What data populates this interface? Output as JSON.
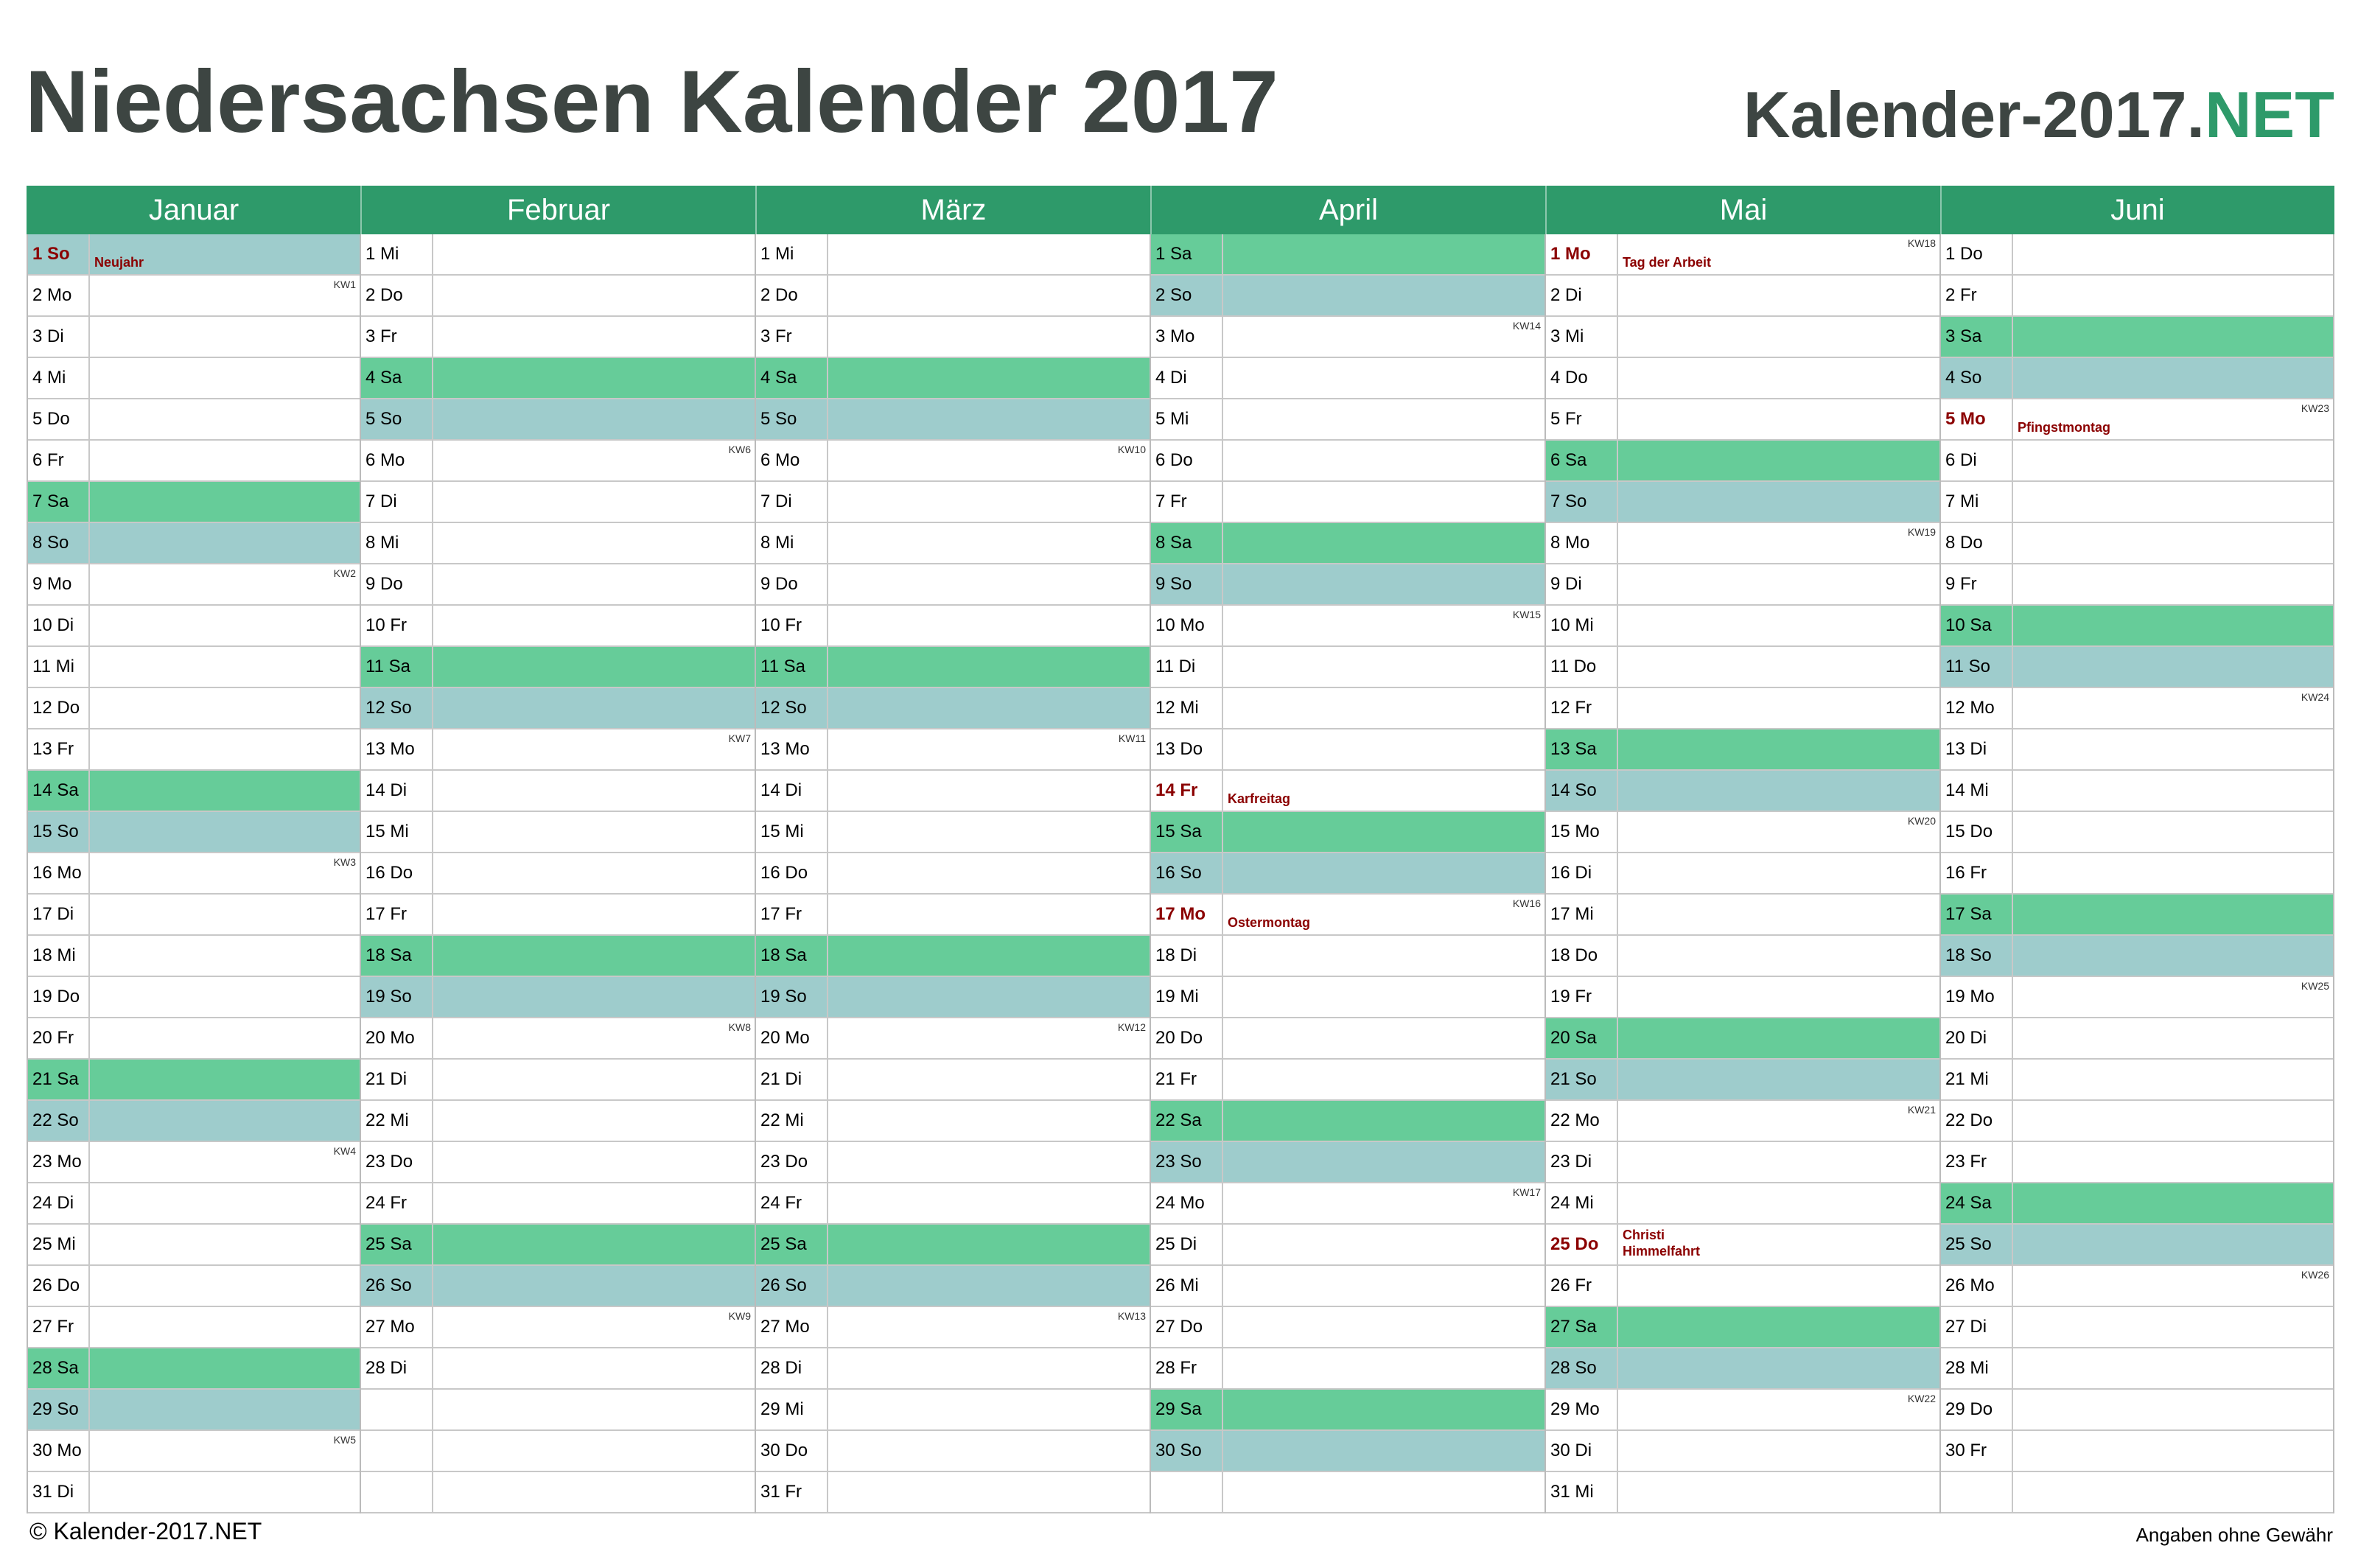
{
  "title": "Niedersachsen Kalender 2017",
  "brand": {
    "main": "Kalender-2017.",
    "tld": "NET"
  },
  "footer": {
    "copyright": "© Kalender-2017.NET",
    "disclaimer": "Angaben ohne Gewähr"
  },
  "colors": {
    "header": "#2e9a6a",
    "saturday": "#66cc99",
    "sunday": "#9ecccc",
    "holiday_text": "#8b0000"
  },
  "months": [
    {
      "name": "Januar",
      "days": [
        {
          "label": "1 So",
          "holiday": "Neujahr"
        },
        {
          "label": "2 Mo",
          "kw": "KW1"
        },
        {
          "label": "3 Di"
        },
        {
          "label": "4 Mi"
        },
        {
          "label": "5 Do"
        },
        {
          "label": "6 Fr"
        },
        {
          "label": "7 Sa"
        },
        {
          "label": "8 So"
        },
        {
          "label": "9 Mo",
          "kw": "KW2"
        },
        {
          "label": "10 Di"
        },
        {
          "label": "11 Mi"
        },
        {
          "label": "12 Do"
        },
        {
          "label": "13 Fr"
        },
        {
          "label": "14 Sa"
        },
        {
          "label": "15 So"
        },
        {
          "label": "16 Mo",
          "kw": "KW3"
        },
        {
          "label": "17 Di"
        },
        {
          "label": "18 Mi"
        },
        {
          "label": "19 Do"
        },
        {
          "label": "20 Fr"
        },
        {
          "label": "21 Sa"
        },
        {
          "label": "22 So"
        },
        {
          "label": "23 Mo",
          "kw": "KW4"
        },
        {
          "label": "24 Di"
        },
        {
          "label": "25 Mi"
        },
        {
          "label": "26 Do"
        },
        {
          "label": "27 Fr"
        },
        {
          "label": "28 Sa"
        },
        {
          "label": "29 So"
        },
        {
          "label": "30 Mo",
          "kw": "KW5"
        },
        {
          "label": "31 Di"
        }
      ]
    },
    {
      "name": "Februar",
      "days": [
        {
          "label": "1 Mi"
        },
        {
          "label": "2 Do"
        },
        {
          "label": "3 Fr"
        },
        {
          "label": "4 Sa"
        },
        {
          "label": "5 So"
        },
        {
          "label": "6 Mo",
          "kw": "KW6"
        },
        {
          "label": "7 Di"
        },
        {
          "label": "8 Mi"
        },
        {
          "label": "9 Do"
        },
        {
          "label": "10 Fr"
        },
        {
          "label": "11 Sa"
        },
        {
          "label": "12 So"
        },
        {
          "label": "13 Mo",
          "kw": "KW7"
        },
        {
          "label": "14 Di"
        },
        {
          "label": "15 Mi"
        },
        {
          "label": "16 Do"
        },
        {
          "label": "17 Fr"
        },
        {
          "label": "18 Sa"
        },
        {
          "label": "19 So"
        },
        {
          "label": "20 Mo",
          "kw": "KW8"
        },
        {
          "label": "21 Di"
        },
        {
          "label": "22 Mi"
        },
        {
          "label": "23 Do"
        },
        {
          "label": "24 Fr"
        },
        {
          "label": "25 Sa"
        },
        {
          "label": "26 So"
        },
        {
          "label": "27 Mo",
          "kw": "KW9"
        },
        {
          "label": "28 Di"
        }
      ]
    },
    {
      "name": "März",
      "days": [
        {
          "label": "1 Mi"
        },
        {
          "label": "2 Do"
        },
        {
          "label": "3 Fr"
        },
        {
          "label": "4 Sa"
        },
        {
          "label": "5 So"
        },
        {
          "label": "6 Mo",
          "kw": "KW10"
        },
        {
          "label": "7 Di"
        },
        {
          "label": "8 Mi"
        },
        {
          "label": "9 Do"
        },
        {
          "label": "10 Fr"
        },
        {
          "label": "11 Sa"
        },
        {
          "label": "12 So"
        },
        {
          "label": "13 Mo",
          "kw": "KW11"
        },
        {
          "label": "14 Di"
        },
        {
          "label": "15 Mi"
        },
        {
          "label": "16 Do"
        },
        {
          "label": "17 Fr"
        },
        {
          "label": "18 Sa"
        },
        {
          "label": "19 So"
        },
        {
          "label": "20 Mo",
          "kw": "KW12"
        },
        {
          "label": "21 Di"
        },
        {
          "label": "22 Mi"
        },
        {
          "label": "23 Do"
        },
        {
          "label": "24 Fr"
        },
        {
          "label": "25 Sa"
        },
        {
          "label": "26 So"
        },
        {
          "label": "27 Mo",
          "kw": "KW13"
        },
        {
          "label": "28 Di"
        },
        {
          "label": "29 Mi"
        },
        {
          "label": "30 Do"
        },
        {
          "label": "31 Fr"
        }
      ]
    },
    {
      "name": "April",
      "days": [
        {
          "label": "1 Sa"
        },
        {
          "label": "2 So"
        },
        {
          "label": "3 Mo",
          "kw": "KW14"
        },
        {
          "label": "4 Di"
        },
        {
          "label": "5 Mi"
        },
        {
          "label": "6 Do"
        },
        {
          "label": "7 Fr"
        },
        {
          "label": "8 Sa"
        },
        {
          "label": "9 So"
        },
        {
          "label": "10 Mo",
          "kw": "KW15"
        },
        {
          "label": "11 Di"
        },
        {
          "label": "12 Mi"
        },
        {
          "label": "13 Do"
        },
        {
          "label": "14 Fr",
          "holiday": "Karfreitag"
        },
        {
          "label": "15 Sa"
        },
        {
          "label": "16 So"
        },
        {
          "label": "17 Mo",
          "kw": "KW16",
          "holiday": "Ostermontag"
        },
        {
          "label": "18 Di"
        },
        {
          "label": "19 Mi"
        },
        {
          "label": "20 Do"
        },
        {
          "label": "21 Fr"
        },
        {
          "label": "22 Sa"
        },
        {
          "label": "23 So"
        },
        {
          "label": "24 Mo",
          "kw": "KW17"
        },
        {
          "label": "25 Di"
        },
        {
          "label": "26 Mi"
        },
        {
          "label": "27 Do"
        },
        {
          "label": "28 Fr"
        },
        {
          "label": "29 Sa"
        },
        {
          "label": "30 So"
        }
      ]
    },
    {
      "name": "Mai",
      "days": [
        {
          "label": "1 Mo",
          "kw": "KW18",
          "holiday": "Tag der Arbeit"
        },
        {
          "label": "2 Di"
        },
        {
          "label": "3 Mi"
        },
        {
          "label": "4 Do"
        },
        {
          "label": "5 Fr"
        },
        {
          "label": "6 Sa"
        },
        {
          "label": "7 So"
        },
        {
          "label": "8 Mo",
          "kw": "KW19"
        },
        {
          "label": "9 Di"
        },
        {
          "label": "10 Mi"
        },
        {
          "label": "11 Do"
        },
        {
          "label": "12 Fr"
        },
        {
          "label": "13 Sa"
        },
        {
          "label": "14 So"
        },
        {
          "label": "15 Mo",
          "kw": "KW20"
        },
        {
          "label": "16 Di"
        },
        {
          "label": "17 Mi"
        },
        {
          "label": "18 Do"
        },
        {
          "label": "19 Fr"
        },
        {
          "label": "20 Sa"
        },
        {
          "label": "21 So"
        },
        {
          "label": "22 Mo",
          "kw": "KW21"
        },
        {
          "label": "23 Di"
        },
        {
          "label": "24 Mi"
        },
        {
          "label": "25 Do",
          "holiday": "Christi Himmelfahrt"
        },
        {
          "label": "26 Fr"
        },
        {
          "label": "27 Sa"
        },
        {
          "label": "28 So"
        },
        {
          "label": "29 Mo",
          "kw": "KW22"
        },
        {
          "label": "30 Di"
        },
        {
          "label": "31 Mi"
        }
      ]
    },
    {
      "name": "Juni",
      "days": [
        {
          "label": "1 Do"
        },
        {
          "label": "2 Fr"
        },
        {
          "label": "3 Sa"
        },
        {
          "label": "4 So"
        },
        {
          "label": "5 Mo",
          "kw": "KW23",
          "holiday": "Pfingstmontag"
        },
        {
          "label": "6 Di"
        },
        {
          "label": "7 Mi"
        },
        {
          "label": "8 Do"
        },
        {
          "label": "9 Fr"
        },
        {
          "label": "10 Sa"
        },
        {
          "label": "11 So"
        },
        {
          "label": "12 Mo",
          "kw": "KW24"
        },
        {
          "label": "13 Di"
        },
        {
          "label": "14 Mi"
        },
        {
          "label": "15 Do"
        },
        {
          "label": "16 Fr"
        },
        {
          "label": "17 Sa"
        },
        {
          "label": "18 So"
        },
        {
          "label": "19 Mo",
          "kw": "KW25"
        },
        {
          "label": "20 Di"
        },
        {
          "label": "21 Mi"
        },
        {
          "label": "22 Do"
        },
        {
          "label": "23 Fr"
        },
        {
          "label": "24 Sa"
        },
        {
          "label": "25 So"
        },
        {
          "label": "26 Mo",
          "kw": "KW26"
        },
        {
          "label": "27 Di"
        },
        {
          "label": "28 Mi"
        },
        {
          "label": "29 Do"
        },
        {
          "label": "30 Fr"
        }
      ]
    }
  ]
}
